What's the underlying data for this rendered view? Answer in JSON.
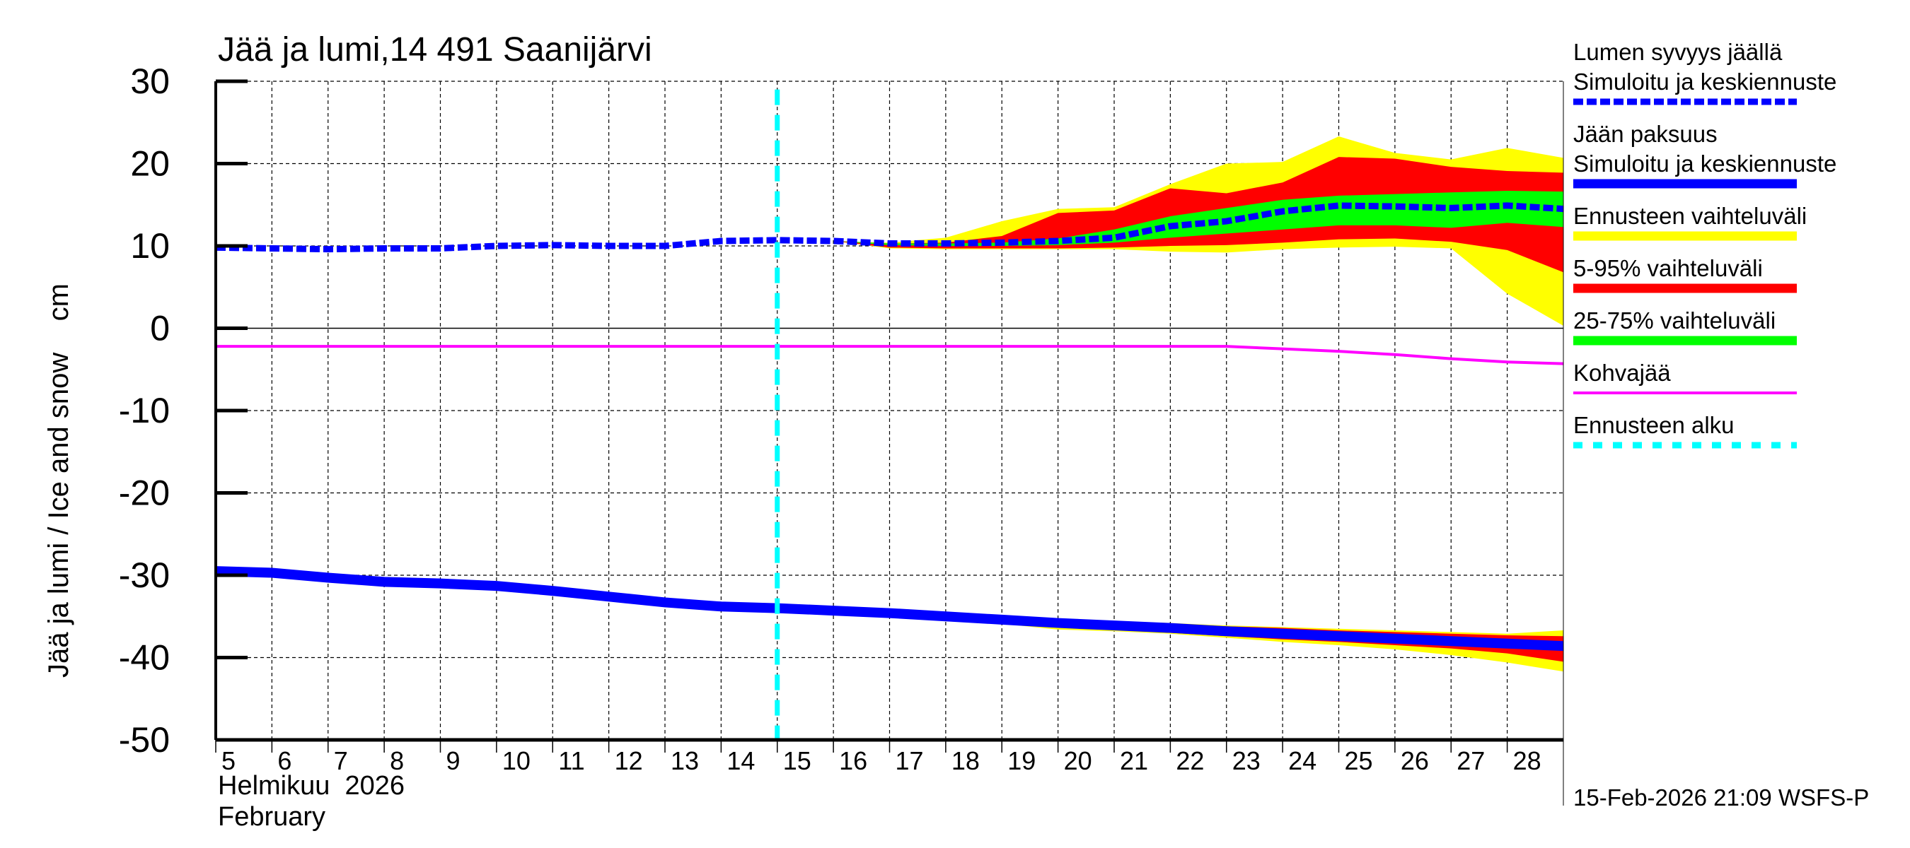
{
  "chart_data": {
    "type": "area",
    "title": "Jää ja lumi,14 491 Saanijärvi",
    "ylabel": "Jää ja lumi / Ice and snow    cm",
    "xlabel_line1": "Helmikuu  2026",
    "xlabel_line2": "February",
    "timestamp": "15-Feb-2026 21:09 WSFS-P",
    "ylim": [
      -50,
      30
    ],
    "yticks": [
      30,
      20,
      10,
      0,
      -10,
      -20,
      -30,
      -40,
      -50
    ],
    "xlim": [
      5,
      29
    ],
    "xticks": [
      5,
      6,
      7,
      8,
      9,
      10,
      11,
      12,
      13,
      14,
      15,
      16,
      17,
      18,
      19,
      20,
      21,
      22,
      23,
      24,
      25,
      26,
      27,
      28
    ],
    "grid": true,
    "legend_position": "right",
    "forecast_start_day": 15,
    "colors": {
      "snow": "#0000ff",
      "ice": "#0000ff",
      "range": "#ffff00",
      "p5_95": "#ff0000",
      "p25_75": "#00ff00",
      "slush": "#ff00ff",
      "forecast": "#00ffff"
    },
    "legend": [
      {
        "title": "Lumen syvyys jäällä",
        "label": "Simuloitu ja keskiennuste",
        "key": "snow",
        "style": "dashed"
      },
      {
        "title": "Jään paksuus",
        "label": "Simuloitu ja keskiennuste",
        "key": "ice",
        "style": "solid"
      },
      {
        "label": "Ennusteen vaihteluväli",
        "key": "range",
        "style": "band"
      },
      {
        "label": "5-95% vaihteluväli",
        "key": "p5_95",
        "style": "band"
      },
      {
        "label": "25-75% vaihteluväli",
        "key": "p25_75",
        "style": "band"
      },
      {
        "label": "Kohvajää",
        "key": "slush",
        "style": "thin"
      },
      {
        "label": "Ennusteen alku",
        "key": "forecast",
        "style": "dotted"
      }
    ],
    "snow_depth": {
      "x": [
        5,
        6,
        7,
        8,
        9,
        10,
        11,
        12,
        13,
        14,
        15,
        16,
        17,
        18,
        19,
        20,
        21,
        22,
        23,
        24,
        25,
        26,
        27,
        28,
        29
      ],
      "y": [
        9.8,
        9.7,
        9.6,
        9.7,
        9.7,
        10.0,
        10.1,
        10.0,
        10.0,
        10.6,
        10.7,
        10.6,
        10.3,
        10.3,
        10.4,
        10.6,
        11.0,
        12.4,
        13.0,
        14.2,
        14.9,
        14.8,
        14.6,
        14.9,
        14.5
      ]
    },
    "snow_bands": {
      "x": [
        15,
        16,
        17,
        18,
        19,
        20,
        21,
        22,
        23,
        24,
        25,
        26,
        27,
        28,
        29
      ],
      "range_upper": [
        10.7,
        10.6,
        10.4,
        11.0,
        13.0,
        14.5,
        14.7,
        17.5,
        20.0,
        20.2,
        23.3,
        21.3,
        20.5,
        21.9,
        20.7
      ],
      "p95": [
        10.7,
        10.6,
        10.3,
        10.4,
        11.2,
        14.0,
        14.3,
        17.0,
        16.4,
        17.7,
        20.8,
        20.6,
        19.6,
        19.1,
        18.9
      ],
      "p75": [
        10.7,
        10.6,
        10.3,
        10.3,
        10.4,
        10.9,
        12.0,
        13.6,
        14.6,
        15.6,
        16.1,
        16.3,
        16.5,
        16.7,
        16.6
      ],
      "p25": [
        10.7,
        10.6,
        10.1,
        10.0,
        10.0,
        10.1,
        10.4,
        11.0,
        11.5,
        12.0,
        12.5,
        12.5,
        12.2,
        12.8,
        12.3
      ],
      "p5": [
        10.7,
        10.6,
        9.8,
        9.7,
        9.7,
        9.7,
        9.8,
        10.0,
        10.1,
        10.4,
        10.8,
        10.9,
        10.5,
        9.5,
        6.8
      ],
      "range_lower": [
        10.7,
        10.6,
        9.7,
        9.6,
        9.6,
        9.6,
        9.6,
        9.3,
        9.2,
        9.6,
        9.8,
        9.9,
        9.7,
        4.2,
        0.3
      ]
    },
    "ice_thickness": {
      "x": [
        5,
        6,
        7,
        8,
        9,
        10,
        11,
        12,
        13,
        14,
        15,
        16,
        17,
        18,
        19,
        20,
        21,
        22,
        23,
        24,
        25,
        26,
        27,
        28,
        29
      ],
      "y": [
        -29.5,
        -29.7,
        -30.3,
        -30.8,
        -31.0,
        -31.3,
        -31.9,
        -32.6,
        -33.3,
        -33.8,
        -34.0,
        -34.3,
        -34.6,
        -35.0,
        -35.4,
        -35.8,
        -36.1,
        -36.4,
        -36.8,
        -37.1,
        -37.4,
        -37.7,
        -38.0,
        -38.3,
        -38.6
      ]
    },
    "ice_bands": {
      "x": [
        15,
        16,
        17,
        18,
        19,
        20,
        21,
        22,
        23,
        24,
        25,
        26,
        27,
        28,
        29
      ],
      "range_upper": [
        -34.0,
        -34.3,
        -34.5,
        -34.8,
        -35.1,
        -35.4,
        -35.6,
        -35.8,
        -36.1,
        -36.3,
        -36.5,
        -36.7,
        -36.9,
        -37.1,
        -36.7
      ],
      "p95": [
        -34.0,
        -34.3,
        -34.5,
        -34.8,
        -35.2,
        -35.5,
        -35.7,
        -35.9,
        -36.2,
        -36.4,
        -36.7,
        -36.9,
        -37.1,
        -37.3,
        -37.4
      ],
      "p75": [
        -34.0,
        -34.3,
        -34.6,
        -35.0,
        -35.3,
        -35.7,
        -36.0,
        -36.3,
        -36.6,
        -36.9,
        -37.2,
        -37.5,
        -37.7,
        -38.0,
        -38.2
      ],
      "p25": [
        -34.0,
        -34.3,
        -34.6,
        -35.0,
        -35.5,
        -35.9,
        -36.3,
        -36.6,
        -37.0,
        -37.3,
        -37.6,
        -37.9,
        -38.3,
        -38.6,
        -39.0
      ],
      "p5": [
        -34.0,
        -34.3,
        -34.7,
        -35.2,
        -35.7,
        -36.2,
        -36.6,
        -37.0,
        -37.4,
        -37.8,
        -38.1,
        -38.5,
        -38.9,
        -39.5,
        -40.5
      ],
      "range_lower": [
        -34.0,
        -34.3,
        -34.8,
        -35.4,
        -35.9,
        -36.6,
        -36.8,
        -37.1,
        -37.6,
        -38.1,
        -38.5,
        -39.0,
        -39.7,
        -40.6,
        -41.7
      ]
    },
    "slush_ice": {
      "x": [
        5,
        15,
        22,
        23,
        24,
        25,
        26,
        27,
        28,
        29
      ],
      "y": [
        -2.2,
        -2.2,
        -2.2,
        -2.2,
        -2.5,
        -2.8,
        -3.2,
        -3.7,
        -4.1,
        -4.3
      ]
    }
  }
}
